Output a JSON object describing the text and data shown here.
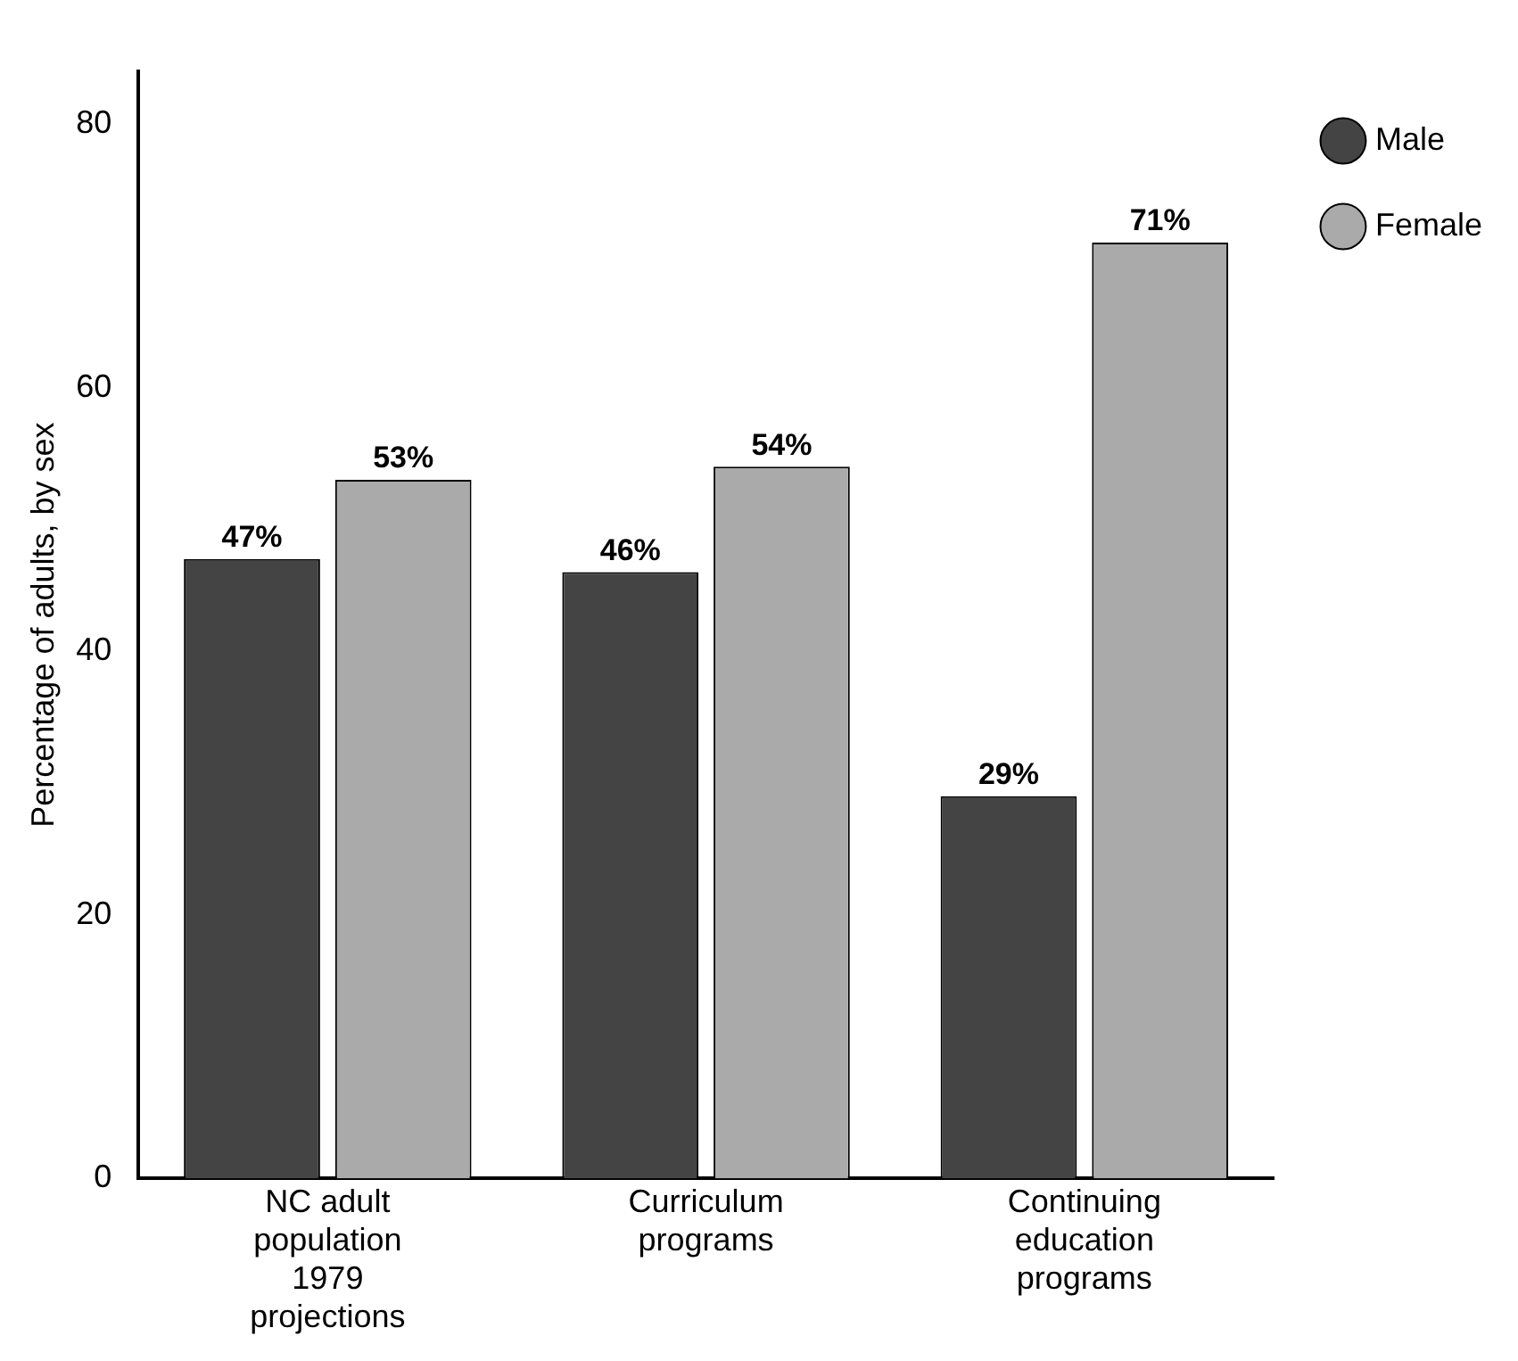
{
  "chart_data": {
    "type": "bar",
    "ylabel": "Percentage of adults, by sex",
    "categories": [
      "NC adult population 1979 projections",
      "Curriculum programs",
      "Continuing education programs"
    ],
    "series": [
      {
        "name": "Male",
        "color": "#444444",
        "values": [
          47,
          46,
          29
        ],
        "value_labels": [
          "47%",
          "46%",
          "29%"
        ]
      },
      {
        "name": "Female",
        "color": "#aaaaaa",
        "values": [
          53,
          54,
          71
        ],
        "value_labels": [
          "53%",
          "54%",
          "71%"
        ]
      }
    ],
    "ylim": [
      0,
      84
    ],
    "yticks": [
      0,
      20,
      40,
      60,
      80
    ],
    "grid": false,
    "legend": "top right"
  }
}
